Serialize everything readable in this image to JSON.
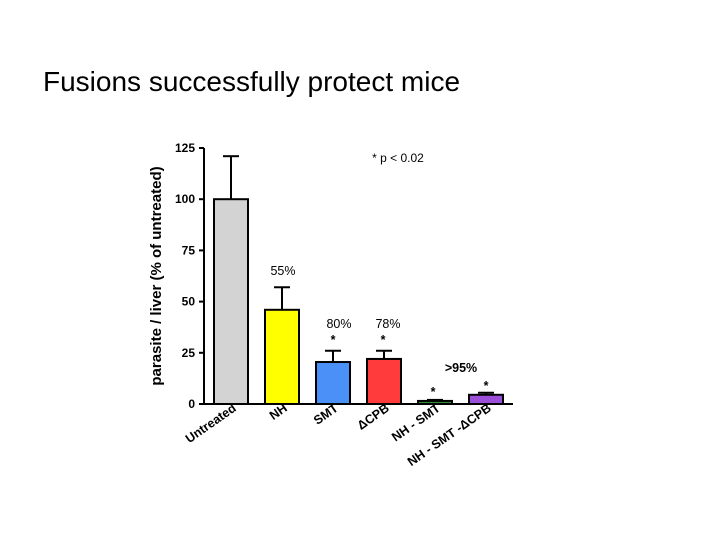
{
  "slide": {
    "title": "Fusions successfully protect mice"
  },
  "chart_data": {
    "type": "bar",
    "title": "",
    "xlabel": "",
    "ylabel": "parasite / liver (% of untreated)",
    "ylim": [
      0,
      125
    ],
    "yticks": [
      0,
      25,
      50,
      75,
      100,
      125
    ],
    "categories": [
      "Untreated",
      "NH",
      "SMT",
      "ΔCPB",
      "NH - SMT",
      "NH - SMT -ΔCPB"
    ],
    "values": [
      100,
      46,
      20.5,
      22,
      1.5,
      4.5
    ],
    "errors": [
      21,
      11,
      5.5,
      4,
      0.5,
      1
    ],
    "colors": [
      "#d3d3d3",
      "#ffff00",
      "#4a90f7",
      "#ff3b3b",
      "#2e8b3a",
      "#9b4fd9"
    ],
    "significance_marker": "*",
    "significant": [
      false,
      false,
      true,
      true,
      true,
      true
    ],
    "reduction_labels": [
      "",
      "55%",
      "80%",
      "78%",
      ">95%",
      ""
    ],
    "p_note": "* p < 0.02"
  }
}
